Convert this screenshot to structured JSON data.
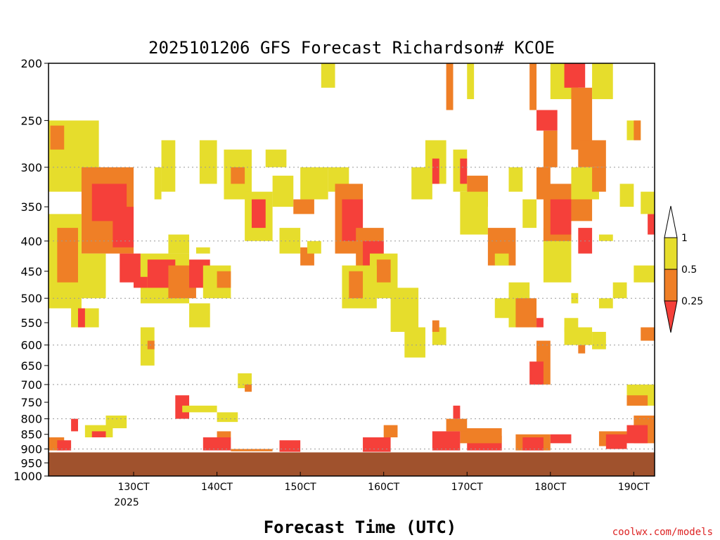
{
  "chart_data": {
    "type": "heatmap",
    "title": "2025101206 GFS Forecast Richardson# KCOE",
    "xlabel": "Forecast Time (UTC)",
    "ylabel": "",
    "credit": "coolwx.com/models",
    "y_scale": "log-pressure",
    "ylim": [
      1000,
      200
    ],
    "xlim_hours": [
      -6.5,
      168
    ],
    "y_ticks": [
      "200",
      "250",
      "300",
      "350",
      "400",
      "450",
      "500",
      "550",
      "600",
      "650",
      "700",
      "750",
      "800",
      "850",
      "900",
      "950",
      "1000"
    ],
    "y_gridlines": [
      "300",
      "400",
      "500",
      "600",
      "700",
      "800",
      "900",
      "1000"
    ],
    "x_ticks": [
      {
        "label": "130CT",
        "sublabel": "2025",
        "hour": 18
      },
      {
        "label": "140CT",
        "hour": 42
      },
      {
        "label": "150CT",
        "hour": 66
      },
      {
        "label": "160CT",
        "hour": 90
      },
      {
        "label": "170CT",
        "hour": 114
      },
      {
        "label": "180CT",
        "hour": 138
      },
      {
        "label": "190CT",
        "hour": 162
      }
    ],
    "legend": {
      "placement": "right",
      "labels": [
        "1",
        "0.5",
        "0.25"
      ],
      "bins": [
        {
          "range": "> 1",
          "color": "#ffffff"
        },
        {
          "range": "0.5 - 1",
          "color": "#e6dd2c"
        },
        {
          "range": "0.25 - 0.5",
          "color": "#ef7f26"
        },
        {
          "range": "< 0.25",
          "color": "#f5403a"
        }
      ]
    },
    "colors": {
      "yellow": "#e6dd2c",
      "orange": "#ef7f26",
      "red": "#f5403a",
      "ground": "#a0522d"
    },
    "terrain_pressure": 912,
    "regions": [
      {
        "t0": -6.5,
        "t1": 8,
        "p_top": 250,
        "p_bot": 330,
        "bin": "yellow"
      },
      {
        "t0": -6,
        "t1": -2,
        "p_top": 255,
        "p_bot": 280,
        "bin": "orange"
      },
      {
        "t0": 3,
        "t1": 18,
        "p_top": 300,
        "p_bot": 420,
        "bin": "orange"
      },
      {
        "t0": 6,
        "t1": 16,
        "p_top": 320,
        "p_bot": 370,
        "bin": "red"
      },
      {
        "t0": -6.5,
        "t1": 3,
        "p_top": 360,
        "p_bot": 520,
        "bin": "yellow"
      },
      {
        "t0": -4,
        "t1": 2,
        "p_top": 380,
        "p_bot": 470,
        "bin": "orange"
      },
      {
        "t0": 12,
        "t1": 18,
        "p_top": 350,
        "p_bot": 410,
        "bin": "red"
      },
      {
        "t0": 14,
        "t1": 20,
        "p_top": 420,
        "p_bot": 470,
        "bin": "red"
      },
      {
        "t0": 2,
        "t1": 10,
        "p_top": 420,
        "p_bot": 500,
        "bin": "yellow"
      },
      {
        "t0": 20,
        "t1": 34,
        "p_top": 420,
        "p_bot": 510,
        "bin": "yellow"
      },
      {
        "t0": 22,
        "t1": 30,
        "p_top": 430,
        "p_bot": 480,
        "bin": "red"
      },
      {
        "t0": 28,
        "t1": 36,
        "p_top": 440,
        "p_bot": 500,
        "bin": "orange"
      },
      {
        "t0": 34,
        "t1": 40,
        "p_top": 430,
        "p_bot": 480,
        "bin": "red"
      },
      {
        "t0": 38,
        "t1": 46,
        "p_top": 440,
        "p_bot": 500,
        "bin": "yellow"
      },
      {
        "t0": 42,
        "t1": 46,
        "p_top": 450,
        "p_bot": 480,
        "bin": "orange"
      },
      {
        "t0": 28,
        "t1": 34,
        "p_top": 390,
        "p_bot": 420,
        "bin": "yellow"
      },
      {
        "t0": 26,
        "t1": 30,
        "p_top": 270,
        "p_bot": 330,
        "bin": "yellow"
      },
      {
        "t0": 37,
        "t1": 42,
        "p_top": 270,
        "p_bot": 320,
        "bin": "yellow"
      },
      {
        "t0": 44,
        "t1": 52,
        "p_top": 280,
        "p_bot": 340,
        "bin": "yellow"
      },
      {
        "t0": 46,
        "t1": 50,
        "p_top": 300,
        "p_bot": 320,
        "bin": "orange"
      },
      {
        "t0": 50,
        "t1": 58,
        "p_top": 330,
        "p_bot": 400,
        "bin": "yellow"
      },
      {
        "t0": 52,
        "t1": 56,
        "p_top": 340,
        "p_bot": 380,
        "bin": "red"
      },
      {
        "t0": 58,
        "t1": 64,
        "p_top": 310,
        "p_bot": 350,
        "bin": "yellow"
      },
      {
        "t0": 64,
        "t1": 70,
        "p_top": 340,
        "p_bot": 360,
        "bin": "orange"
      },
      {
        "t0": 66,
        "t1": 74,
        "p_top": 300,
        "p_bot": 340,
        "bin": "yellow"
      },
      {
        "t0": 74,
        "t1": 80,
        "p_top": 300,
        "p_bot": 330,
        "bin": "yellow"
      },
      {
        "t0": 76,
        "t1": 84,
        "p_top": 320,
        "p_bot": 420,
        "bin": "orange"
      },
      {
        "t0": 78,
        "t1": 84,
        "p_top": 340,
        "p_bot": 400,
        "bin": "red"
      },
      {
        "t0": 82,
        "t1": 90,
        "p_top": 380,
        "p_bot": 460,
        "bin": "orange"
      },
      {
        "t0": 84,
        "t1": 90,
        "p_top": 400,
        "p_bot": 440,
        "bin": "red"
      },
      {
        "t0": 86,
        "t1": 94,
        "p_top": 420,
        "p_bot": 500,
        "bin": "yellow"
      },
      {
        "t0": 88,
        "t1": 92,
        "p_top": 430,
        "p_bot": 470,
        "bin": "orange"
      },
      {
        "t0": 92,
        "t1": 100,
        "p_top": 480,
        "p_bot": 570,
        "bin": "yellow"
      },
      {
        "t0": 96,
        "t1": 102,
        "p_top": 560,
        "p_bot": 630,
        "bin": "yellow"
      },
      {
        "t0": 78,
        "t1": 88,
        "p_top": 440,
        "p_bot": 520,
        "bin": "yellow"
      },
      {
        "t0": 80,
        "t1": 84,
        "p_top": 450,
        "p_bot": 500,
        "bin": "orange"
      },
      {
        "t0": 72,
        "t1": 76,
        "p_top": 200,
        "p_bot": 220,
        "bin": "yellow"
      },
      {
        "t0": 98,
        "t1": 104,
        "p_top": 300,
        "p_bot": 340,
        "bin": "yellow"
      },
      {
        "t0": 102,
        "t1": 108,
        "p_top": 270,
        "p_bot": 320,
        "bin": "yellow"
      },
      {
        "t0": 104,
        "t1": 106,
        "p_top": 290,
        "p_bot": 320,
        "bin": "red"
      },
      {
        "t0": 110,
        "t1": 114,
        "p_top": 280,
        "p_bot": 330,
        "bin": "yellow"
      },
      {
        "t0": 112,
        "t1": 114,
        "p_top": 290,
        "p_bot": 320,
        "bin": "red"
      },
      {
        "t0": 114,
        "t1": 120,
        "p_top": 310,
        "p_bot": 350,
        "bin": "orange"
      },
      {
        "t0": 112,
        "t1": 120,
        "p_top": 330,
        "p_bot": 390,
        "bin": "yellow"
      },
      {
        "t0": 104,
        "t1": 108,
        "p_top": 560,
        "p_bot": 600,
        "bin": "yellow"
      },
      {
        "t0": 104,
        "t1": 106,
        "p_top": 545,
        "p_bot": 570,
        "bin": "orange"
      },
      {
        "t0": 108,
        "t1": 110,
        "p_top": 200,
        "p_bot": 240,
        "bin": "orange"
      },
      {
        "t0": 114,
        "t1": 116,
        "p_top": 200,
        "p_bot": 230,
        "bin": "yellow"
      },
      {
        "t0": 120,
        "t1": 128,
        "p_top": 380,
        "p_bot": 440,
        "bin": "orange"
      },
      {
        "t0": 122,
        "t1": 126,
        "p_top": 420,
        "p_bot": 440,
        "bin": "yellow"
      },
      {
        "t0": 122,
        "t1": 128,
        "p_top": 500,
        "p_bot": 540,
        "bin": "yellow"
      },
      {
        "t0": 126,
        "t1": 130,
        "p_top": 300,
        "p_bot": 330,
        "bin": "yellow"
      },
      {
        "t0": 126,
        "t1": 132,
        "p_top": 470,
        "p_bot": 560,
        "bin": "yellow"
      },
      {
        "t0": 128,
        "t1": 134,
        "p_top": 500,
        "p_bot": 560,
        "bin": "orange"
      },
      {
        "t0": 134,
        "t1": 136,
        "p_top": 540,
        "p_bot": 560,
        "bin": "red"
      },
      {
        "t0": 130,
        "t1": 134,
        "p_top": 340,
        "p_bot": 380,
        "bin": "yellow"
      },
      {
        "t0": 132,
        "t1": 134,
        "p_top": 200,
        "p_bot": 240,
        "bin": "orange"
      },
      {
        "t0": 134,
        "t1": 138,
        "p_top": 300,
        "p_bot": 340,
        "bin": "orange"
      },
      {
        "t0": 134,
        "t1": 138,
        "p_top": 590,
        "p_bot": 700,
        "bin": "orange"
      },
      {
        "t0": 132,
        "t1": 136,
        "p_top": 640,
        "p_bot": 700,
        "bin": "red"
      },
      {
        "t0": 136,
        "t1": 144,
        "p_top": 380,
        "p_bot": 470,
        "bin": "yellow"
      },
      {
        "t0": 136,
        "t1": 140,
        "p_top": 260,
        "p_bot": 300,
        "bin": "orange"
      },
      {
        "t0": 136,
        "t1": 144,
        "p_top": 320,
        "p_bot": 400,
        "bin": "orange"
      },
      {
        "t0": 138,
        "t1": 144,
        "p_top": 340,
        "p_bot": 390,
        "bin": "red"
      },
      {
        "t0": 134,
        "t1": 140,
        "p_top": 240,
        "p_bot": 260,
        "bin": "red"
      },
      {
        "t0": 138,
        "t1": 146,
        "p_top": 200,
        "p_bot": 230,
        "bin": "yellow"
      },
      {
        "t0": 142,
        "t1": 148,
        "p_top": 200,
        "p_bot": 220,
        "bin": "red"
      },
      {
        "t0": 144,
        "t1": 150,
        "p_top": 220,
        "p_bot": 280,
        "bin": "orange"
      },
      {
        "t0": 146,
        "t1": 154,
        "p_top": 270,
        "p_bot": 300,
        "bin": "orange"
      },
      {
        "t0": 144,
        "t1": 150,
        "p_top": 320,
        "p_bot": 370,
        "bin": "orange"
      },
      {
        "t0": 146,
        "t1": 150,
        "p_top": 380,
        "p_bot": 420,
        "bin": "red"
      },
      {
        "t0": 144,
        "t1": 152,
        "p_top": 300,
        "p_bot": 340,
        "bin": "yellow"
      },
      {
        "t0": 150,
        "t1": 154,
        "p_top": 300,
        "p_bot": 330,
        "bin": "orange"
      },
      {
        "t0": 150,
        "t1": 156,
        "p_top": 200,
        "p_bot": 230,
        "bin": "yellow"
      },
      {
        "t0": 142,
        "t1": 150,
        "p_top": 560,
        "p_bot": 600,
        "bin": "yellow"
      },
      {
        "t0": 146,
        "t1": 148,
        "p_top": 600,
        "p_bot": 620,
        "bin": "orange"
      },
      {
        "t0": 152,
        "t1": 156,
        "p_top": 500,
        "p_bot": 520,
        "bin": "yellow"
      },
      {
        "t0": 156,
        "t1": 160,
        "p_top": 470,
        "p_bot": 500,
        "bin": "yellow"
      },
      {
        "t0": 166,
        "t1": 168,
        "p_top": 360,
        "p_bot": 390,
        "bin": "red"
      },
      {
        "t0": 164,
        "t1": 168,
        "p_top": 330,
        "p_bot": 360,
        "bin": "yellow"
      },
      {
        "t0": 160,
        "t1": 168,
        "p_top": 700,
        "p_bot": 760,
        "bin": "yellow"
      },
      {
        "t0": 160,
        "t1": 166,
        "p_top": 730,
        "p_bot": 760,
        "bin": "orange"
      },
      {
        "t0": 162,
        "t1": 168,
        "p_top": 790,
        "p_bot": 880,
        "bin": "orange"
      },
      {
        "t0": 160,
        "t1": 166,
        "p_top": 820,
        "p_bot": 880,
        "bin": "red"
      },
      {
        "t0": 152,
        "t1": 160,
        "p_top": 840,
        "p_bot": 890,
        "bin": "orange"
      },
      {
        "t0": 154,
        "t1": 160,
        "p_top": 850,
        "p_bot": 900,
        "bin": "red"
      },
      {
        "t0": 128,
        "t1": 138,
        "p_top": 850,
        "p_bot": 905,
        "bin": "orange"
      },
      {
        "t0": 130,
        "t1": 136,
        "p_top": 860,
        "p_bot": 905,
        "bin": "red"
      },
      {
        "t0": 138,
        "t1": 144,
        "p_top": 850,
        "p_bot": 880,
        "bin": "red"
      },
      {
        "t0": 114,
        "t1": 124,
        "p_top": 855,
        "p_bot": 905,
        "bin": "red"
      },
      {
        "t0": 112,
        "t1": 124,
        "p_top": 830,
        "p_bot": 880,
        "bin": "orange"
      },
      {
        "t0": 104,
        "t1": 112,
        "p_top": 840,
        "p_bot": 905,
        "bin": "red"
      },
      {
        "t0": 108,
        "t1": 114,
        "p_top": 800,
        "p_bot": 840,
        "bin": "orange"
      },
      {
        "t0": 110,
        "t1": 112,
        "p_top": 760,
        "p_bot": 800,
        "bin": "red"
      },
      {
        "t0": 84,
        "t1": 92,
        "p_top": 860,
        "p_bot": 910,
        "bin": "red"
      },
      {
        "t0": 90,
        "t1": 94,
        "p_top": 820,
        "p_bot": 860,
        "bin": "orange"
      },
      {
        "t0": 60,
        "t1": 66,
        "p_top": 870,
        "p_bot": 910,
        "bin": "red"
      },
      {
        "t0": 38,
        "t1": 46,
        "p_top": 860,
        "p_bot": 905,
        "bin": "red"
      },
      {
        "t0": 42,
        "t1": 46,
        "p_top": 840,
        "p_bot": 860,
        "bin": "orange"
      },
      {
        "t0": 46,
        "t1": 58,
        "p_top": 900,
        "p_bot": 908,
        "bin": "orange"
      },
      {
        "t0": -6.5,
        "t1": -2,
        "p_top": 860,
        "p_bot": 905,
        "bin": "orange"
      },
      {
        "t0": -4,
        "t1": 0,
        "p_top": 870,
        "p_bot": 905,
        "bin": "red"
      },
      {
        "t0": 4,
        "t1": 12,
        "p_top": 820,
        "p_bot": 860,
        "bin": "yellow"
      },
      {
        "t0": 6,
        "t1": 10,
        "p_top": 840,
        "p_bot": 860,
        "bin": "red"
      },
      {
        "t0": 0,
        "t1": 2,
        "p_top": 800,
        "p_bot": 840,
        "bin": "red"
      },
      {
        "t0": 30,
        "t1": 34,
        "p_top": 730,
        "p_bot": 800,
        "bin": "red"
      },
      {
        "t0": 32,
        "t1": 42,
        "p_top": 760,
        "p_bot": 780,
        "bin": "yellow"
      },
      {
        "t0": 42,
        "t1": 48,
        "p_top": 780,
        "p_bot": 810,
        "bin": "yellow"
      },
      {
        "t0": 48,
        "t1": 52,
        "p_top": 670,
        "p_bot": 710,
        "bin": "yellow"
      },
      {
        "t0": 50,
        "t1": 52,
        "p_top": 700,
        "p_bot": 720,
        "bin": "orange"
      },
      {
        "t0": 10,
        "t1": 16,
        "p_top": 790,
        "p_bot": 830,
        "bin": "yellow"
      },
      {
        "t0": 0,
        "t1": 8,
        "p_top": 520,
        "p_bot": 560,
        "bin": "yellow"
      },
      {
        "t0": 2,
        "t1": 4,
        "p_top": 520,
        "p_bot": 560,
        "bin": "red"
      },
      {
        "t0": 20,
        "t1": 24,
        "p_top": 560,
        "p_bot": 650,
        "bin": "yellow"
      },
      {
        "t0": 22,
        "t1": 24,
        "p_top": 590,
        "p_bot": 610,
        "bin": "orange"
      },
      {
        "t0": 34,
        "t1": 40,
        "p_top": 510,
        "p_bot": 560,
        "bin": "yellow"
      },
      {
        "t0": 18,
        "t1": 22,
        "p_top": 460,
        "p_bot": 480,
        "bin": "red"
      },
      {
        "t0": 24,
        "t1": 26,
        "p_top": 300,
        "p_bot": 340,
        "bin": "yellow"
      },
      {
        "t0": 56,
        "t1": 62,
        "p_top": 280,
        "p_bot": 300,
        "bin": "yellow"
      },
      {
        "t0": 60,
        "t1": 66,
        "p_top": 380,
        "p_bot": 420,
        "bin": "yellow"
      },
      {
        "t0": 66,
        "t1": 70,
        "p_top": 410,
        "p_bot": 440,
        "bin": "orange"
      },
      {
        "t0": 68,
        "t1": 72,
        "p_top": 400,
        "p_bot": 420,
        "bin": "yellow"
      },
      {
        "t0": 36,
        "t1": 40,
        "p_top": 410,
        "p_bot": 420,
        "bin": "yellow"
      },
      {
        "t0": 162,
        "t1": 168,
        "p_top": 440,
        "p_bot": 470,
        "bin": "yellow"
      },
      {
        "t0": 164,
        "t1": 168,
        "p_top": 560,
        "p_bot": 590,
        "bin": "orange"
      },
      {
        "t0": 152,
        "t1": 156,
        "p_top": 390,
        "p_bot": 400,
        "bin": "yellow"
      },
      {
        "t0": 158,
        "t1": 162,
        "p_top": 320,
        "p_bot": 350,
        "bin": "yellow"
      },
      {
        "t0": 142,
        "t1": 146,
        "p_top": 540,
        "p_bot": 570,
        "bin": "yellow"
      },
      {
        "t0": 144,
        "t1": 146,
        "p_top": 490,
        "p_bot": 510,
        "bin": "yellow"
      },
      {
        "t0": 150,
        "t1": 154,
        "p_top": 570,
        "p_bot": 610,
        "bin": "yellow"
      },
      {
        "t0": 160,
        "t1": 164,
        "p_top": 250,
        "p_bot": 270,
        "bin": "yellow"
      },
      {
        "t0": 162,
        "t1": 164,
        "p_top": 250,
        "p_bot": 270,
        "bin": "orange"
      }
    ]
  }
}
